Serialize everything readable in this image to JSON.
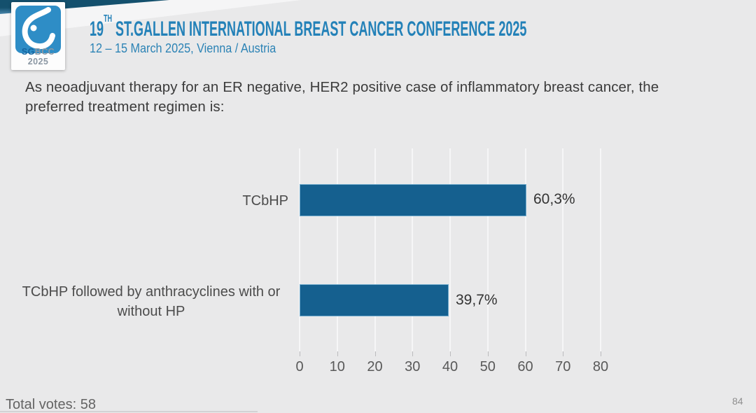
{
  "slide": {
    "logo": {
      "sg": "SG",
      "bcc": "BCC 2025"
    },
    "header": {
      "title_num": "19",
      "title_sup": "TH",
      "title_rest": " ST.GALLEN INTERNATIONAL BREAST CANCER CONFERENCE 2025",
      "subtitle": "12 – 15 March 2025, Vienna / Austria"
    },
    "question_lines": [
      "As neoadjuvant therapy for an ER negative, HER2 positive case of inflammatory breast cancer, the",
      "preferred treatment regimen is:"
    ],
    "category_display_lines": {
      "row1": [
        "TCbHP"
      ],
      "row2_line1": "TCbHP followed by anthracyclines with or",
      "row2_line2": "without HP"
    },
    "footer": {
      "total_votes_label": "Total votes:",
      "total_votes_value": "58",
      "page_number": "84"
    }
  },
  "chart_data": {
    "type": "bar",
    "orientation": "horizontal",
    "title": "",
    "categories": [
      "TCbHP",
      "TCbHP followed by anthracyclines with or without HP"
    ],
    "values": [
      60.3,
      39.7
    ],
    "value_labels": [
      "60,3%",
      "39,7%"
    ],
    "x_ticks": [
      0,
      10,
      20,
      30,
      40,
      50,
      60,
      70,
      80
    ],
    "xlim": [
      0,
      80
    ],
    "grid": true,
    "legend": false,
    "bar_color": "#15608f",
    "total_votes": 58
  },
  "colors": {
    "background": "#e9e9ea",
    "accent_blue": "#2381b8",
    "bar_blue": "#15608f",
    "teal_band": "#14506d",
    "logo_blue": "#2e8dc6"
  }
}
